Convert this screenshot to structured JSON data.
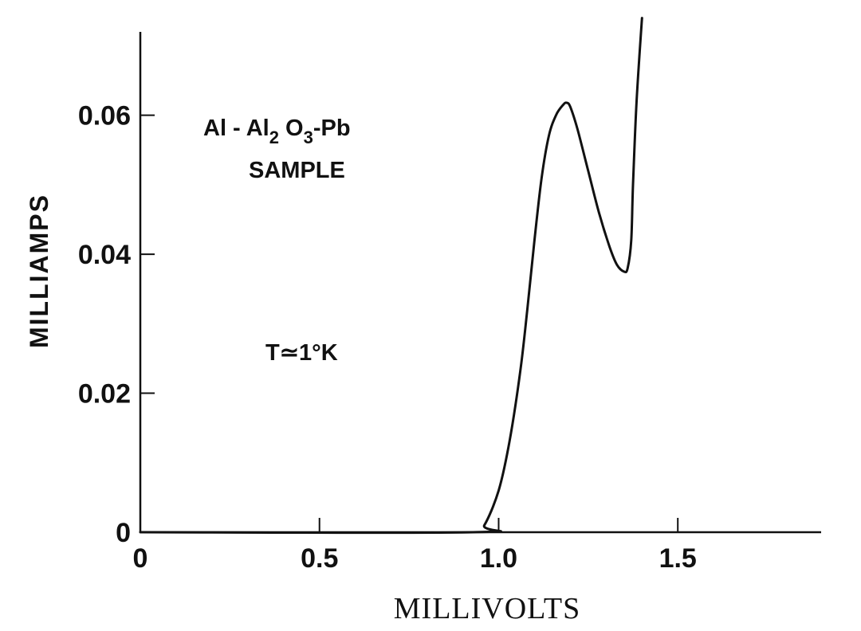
{
  "chart_data": {
    "type": "line",
    "title": "",
    "xlabel": "MILLIVOLTS",
    "ylabel": "MILLIAMPS",
    "xlim": [
      0,
      1.9
    ],
    "ylim": [
      0,
      0.072
    ],
    "x_ticks": [
      0,
      0.5,
      1.0,
      1.5
    ],
    "x_tick_labels": [
      "0",
      "0.5",
      "1.0",
      "1.5"
    ],
    "y_ticks": [
      0,
      0.02,
      0.04,
      0.06
    ],
    "y_tick_labels": [
      "0",
      "0.02",
      "0.04",
      "0.06"
    ],
    "grid": false,
    "annotations": {
      "sample_line1": {
        "p1": "Al - Al",
        "sub": "2",
        "p2": " O",
        "sub2": "3",
        "p3": "-Pb"
      },
      "sample_line2": "SAMPLE",
      "temperature": "T≃1°K"
    },
    "series": [
      {
        "color": "#111111",
        "x": [
          0,
          0.93,
          0.96,
          1.0,
          1.03,
          1.06,
          1.08,
          1.1,
          1.12,
          1.14,
          1.16,
          1.18,
          1.19,
          1.2,
          1.22,
          1.25,
          1.28,
          1.31,
          1.33,
          1.35,
          1.36,
          1.37,
          1.375,
          1.385,
          1.4
        ],
        "y": [
          0,
          0,
          0.001,
          0.006,
          0.013,
          0.023,
          0.032,
          0.042,
          0.051,
          0.057,
          0.06,
          0.0615,
          0.0618,
          0.0612,
          0.058,
          0.052,
          0.046,
          0.041,
          0.0385,
          0.0375,
          0.038,
          0.042,
          0.05,
          0.062,
          0.074
        ]
      }
    ]
  }
}
